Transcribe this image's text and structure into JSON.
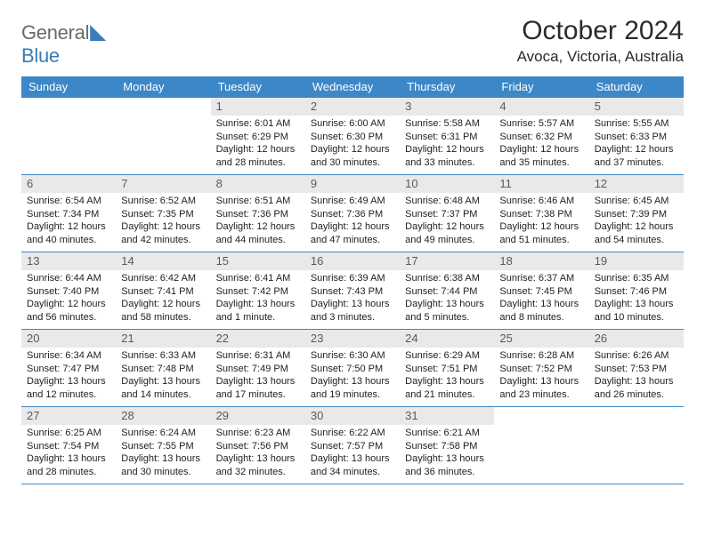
{
  "logo": {
    "part1": "General",
    "part2": "Blue"
  },
  "title": "October 2024",
  "location": "Avoca, Victoria, Australia",
  "colors": {
    "header_bg": "#3c87c7",
    "header_text": "#ffffff",
    "daynum_bg": "#e9e9e9",
    "daynum_text": "#5a5a5a",
    "body_text": "#222222",
    "rule": "#3c87c7"
  },
  "day_names": [
    "Sunday",
    "Monday",
    "Tuesday",
    "Wednesday",
    "Thursday",
    "Friday",
    "Saturday"
  ],
  "weeks": [
    [
      {
        "n": "",
        "l1": "",
        "l2": "",
        "l3": "",
        "l4": ""
      },
      {
        "n": "",
        "l1": "",
        "l2": "",
        "l3": "",
        "l4": ""
      },
      {
        "n": "1",
        "l1": "Sunrise: 6:01 AM",
        "l2": "Sunset: 6:29 PM",
        "l3": "Daylight: 12 hours",
        "l4": "and 28 minutes."
      },
      {
        "n": "2",
        "l1": "Sunrise: 6:00 AM",
        "l2": "Sunset: 6:30 PM",
        "l3": "Daylight: 12 hours",
        "l4": "and 30 minutes."
      },
      {
        "n": "3",
        "l1": "Sunrise: 5:58 AM",
        "l2": "Sunset: 6:31 PM",
        "l3": "Daylight: 12 hours",
        "l4": "and 33 minutes."
      },
      {
        "n": "4",
        "l1": "Sunrise: 5:57 AM",
        "l2": "Sunset: 6:32 PM",
        "l3": "Daylight: 12 hours",
        "l4": "and 35 minutes."
      },
      {
        "n": "5",
        "l1": "Sunrise: 5:55 AM",
        "l2": "Sunset: 6:33 PM",
        "l3": "Daylight: 12 hours",
        "l4": "and 37 minutes."
      }
    ],
    [
      {
        "n": "6",
        "l1": "Sunrise: 6:54 AM",
        "l2": "Sunset: 7:34 PM",
        "l3": "Daylight: 12 hours",
        "l4": "and 40 minutes."
      },
      {
        "n": "7",
        "l1": "Sunrise: 6:52 AM",
        "l2": "Sunset: 7:35 PM",
        "l3": "Daylight: 12 hours",
        "l4": "and 42 minutes."
      },
      {
        "n": "8",
        "l1": "Sunrise: 6:51 AM",
        "l2": "Sunset: 7:36 PM",
        "l3": "Daylight: 12 hours",
        "l4": "and 44 minutes."
      },
      {
        "n": "9",
        "l1": "Sunrise: 6:49 AM",
        "l2": "Sunset: 7:36 PM",
        "l3": "Daylight: 12 hours",
        "l4": "and 47 minutes."
      },
      {
        "n": "10",
        "l1": "Sunrise: 6:48 AM",
        "l2": "Sunset: 7:37 PM",
        "l3": "Daylight: 12 hours",
        "l4": "and 49 minutes."
      },
      {
        "n": "11",
        "l1": "Sunrise: 6:46 AM",
        "l2": "Sunset: 7:38 PM",
        "l3": "Daylight: 12 hours",
        "l4": "and 51 minutes."
      },
      {
        "n": "12",
        "l1": "Sunrise: 6:45 AM",
        "l2": "Sunset: 7:39 PM",
        "l3": "Daylight: 12 hours",
        "l4": "and 54 minutes."
      }
    ],
    [
      {
        "n": "13",
        "l1": "Sunrise: 6:44 AM",
        "l2": "Sunset: 7:40 PM",
        "l3": "Daylight: 12 hours",
        "l4": "and 56 minutes."
      },
      {
        "n": "14",
        "l1": "Sunrise: 6:42 AM",
        "l2": "Sunset: 7:41 PM",
        "l3": "Daylight: 12 hours",
        "l4": "and 58 minutes."
      },
      {
        "n": "15",
        "l1": "Sunrise: 6:41 AM",
        "l2": "Sunset: 7:42 PM",
        "l3": "Daylight: 13 hours",
        "l4": "and 1 minute."
      },
      {
        "n": "16",
        "l1": "Sunrise: 6:39 AM",
        "l2": "Sunset: 7:43 PM",
        "l3": "Daylight: 13 hours",
        "l4": "and 3 minutes."
      },
      {
        "n": "17",
        "l1": "Sunrise: 6:38 AM",
        "l2": "Sunset: 7:44 PM",
        "l3": "Daylight: 13 hours",
        "l4": "and 5 minutes."
      },
      {
        "n": "18",
        "l1": "Sunrise: 6:37 AM",
        "l2": "Sunset: 7:45 PM",
        "l3": "Daylight: 13 hours",
        "l4": "and 8 minutes."
      },
      {
        "n": "19",
        "l1": "Sunrise: 6:35 AM",
        "l2": "Sunset: 7:46 PM",
        "l3": "Daylight: 13 hours",
        "l4": "and 10 minutes."
      }
    ],
    [
      {
        "n": "20",
        "l1": "Sunrise: 6:34 AM",
        "l2": "Sunset: 7:47 PM",
        "l3": "Daylight: 13 hours",
        "l4": "and 12 minutes."
      },
      {
        "n": "21",
        "l1": "Sunrise: 6:33 AM",
        "l2": "Sunset: 7:48 PM",
        "l3": "Daylight: 13 hours",
        "l4": "and 14 minutes."
      },
      {
        "n": "22",
        "l1": "Sunrise: 6:31 AM",
        "l2": "Sunset: 7:49 PM",
        "l3": "Daylight: 13 hours",
        "l4": "and 17 minutes."
      },
      {
        "n": "23",
        "l1": "Sunrise: 6:30 AM",
        "l2": "Sunset: 7:50 PM",
        "l3": "Daylight: 13 hours",
        "l4": "and 19 minutes."
      },
      {
        "n": "24",
        "l1": "Sunrise: 6:29 AM",
        "l2": "Sunset: 7:51 PM",
        "l3": "Daylight: 13 hours",
        "l4": "and 21 minutes."
      },
      {
        "n": "25",
        "l1": "Sunrise: 6:28 AM",
        "l2": "Sunset: 7:52 PM",
        "l3": "Daylight: 13 hours",
        "l4": "and 23 minutes."
      },
      {
        "n": "26",
        "l1": "Sunrise: 6:26 AM",
        "l2": "Sunset: 7:53 PM",
        "l3": "Daylight: 13 hours",
        "l4": "and 26 minutes."
      }
    ],
    [
      {
        "n": "27",
        "l1": "Sunrise: 6:25 AM",
        "l2": "Sunset: 7:54 PM",
        "l3": "Daylight: 13 hours",
        "l4": "and 28 minutes."
      },
      {
        "n": "28",
        "l1": "Sunrise: 6:24 AM",
        "l2": "Sunset: 7:55 PM",
        "l3": "Daylight: 13 hours",
        "l4": "and 30 minutes."
      },
      {
        "n": "29",
        "l1": "Sunrise: 6:23 AM",
        "l2": "Sunset: 7:56 PM",
        "l3": "Daylight: 13 hours",
        "l4": "and 32 minutes."
      },
      {
        "n": "30",
        "l1": "Sunrise: 6:22 AM",
        "l2": "Sunset: 7:57 PM",
        "l3": "Daylight: 13 hours",
        "l4": "and 34 minutes."
      },
      {
        "n": "31",
        "l1": "Sunrise: 6:21 AM",
        "l2": "Sunset: 7:58 PM",
        "l3": "Daylight: 13 hours",
        "l4": "and 36 minutes."
      },
      {
        "n": "",
        "l1": "",
        "l2": "",
        "l3": "",
        "l4": ""
      },
      {
        "n": "",
        "l1": "",
        "l2": "",
        "l3": "",
        "l4": ""
      }
    ]
  ]
}
